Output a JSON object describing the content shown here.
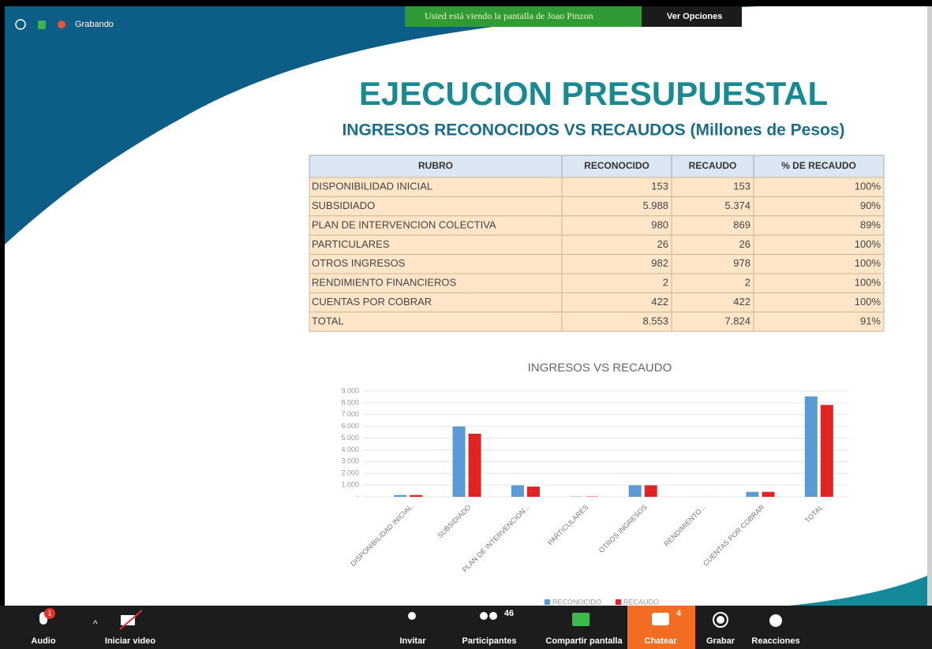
{
  "zoom": {
    "status": "Grabando",
    "banner": "Usted está viendo la pantalla de Joao Pinzon",
    "options": "Ver Opciones",
    "toolbar": {
      "audio": "Audio",
      "audio_badge": "1",
      "video": "Iniciar video",
      "invite": "Invitar",
      "participants": "Participantes",
      "participants_count": "46",
      "share": "Compartir pantalla",
      "chat": "Chatear",
      "chat_count": "4",
      "record": "Grabar",
      "reactions": "Reacciones"
    }
  },
  "slide": {
    "title": "EJECUCION PRESUPUESTAL",
    "subtitle": "INGRESOS RECONOCIDOS VS RECAUDOS (Millones de Pesos)",
    "table": {
      "header": [
        "RUBRO",
        "RECONOCIDO",
        "RECAUDO",
        "% DE RECAUDO"
      ],
      "rows": [
        [
          "DISPONIBILIDAD INICIAL",
          "153",
          "153",
          "100%"
        ],
        [
          "SUBSIDIADO",
          "5.988",
          "5.374",
          "90%"
        ],
        [
          "PLAN DE INTERVENCION COLECTIVA",
          "980",
          "869",
          "89%"
        ],
        [
          "PARTICULARES",
          "26",
          "26",
          "100%"
        ],
        [
          "OTROS INGRESOS",
          "982",
          "978",
          "100%"
        ],
        [
          "RENDIMIENTO FINANCIEROS",
          "2",
          "2",
          "100%"
        ],
        [
          "CUENTAS POR COBRAR",
          "422",
          "422",
          "100%"
        ],
        [
          "TOTAL",
          "8.553",
          "7.824",
          "91%"
        ]
      ]
    }
  },
  "chart_data": {
    "type": "bar",
    "title": "INGRESOS VS RECAUDO",
    "categories": [
      "DISPONIBILIDAD INICIAL",
      "SUBSIDIADO",
      "PLAN DE INTERVENCION...",
      "PARTICULARES",
      "OTROS INGRESOS",
      "RENDIMIENTO...",
      "CUENTAS POR COBRAR",
      "TOTAL"
    ],
    "series": [
      {
        "name": "RECONOCIDO",
        "color": "#5b9bd5",
        "values": [
          153,
          5988,
          980,
          26,
          982,
          2,
          422,
          8553
        ]
      },
      {
        "name": "RECAUDO",
        "color": "#e02424",
        "values": [
          153,
          5374,
          869,
          26,
          978,
          2,
          422,
          7824
        ]
      }
    ],
    "ylim": [
      0,
      9000
    ],
    "yticks": [
      {
        "value": 0,
        "label": "-"
      },
      {
        "value": 1000,
        "label": "1.000"
      },
      {
        "value": 2000,
        "label": "2.000"
      },
      {
        "value": 3000,
        "label": "3.000"
      },
      {
        "value": 4000,
        "label": "4.000"
      },
      {
        "value": 5000,
        "label": "5.000"
      },
      {
        "value": 6000,
        "label": "6.000"
      },
      {
        "value": 7000,
        "label": "7.000"
      },
      {
        "value": 8000,
        "label": "8.000"
      },
      {
        "value": 9000,
        "label": "9.000"
      }
    ],
    "grid": true,
    "legend": "bottom"
  }
}
